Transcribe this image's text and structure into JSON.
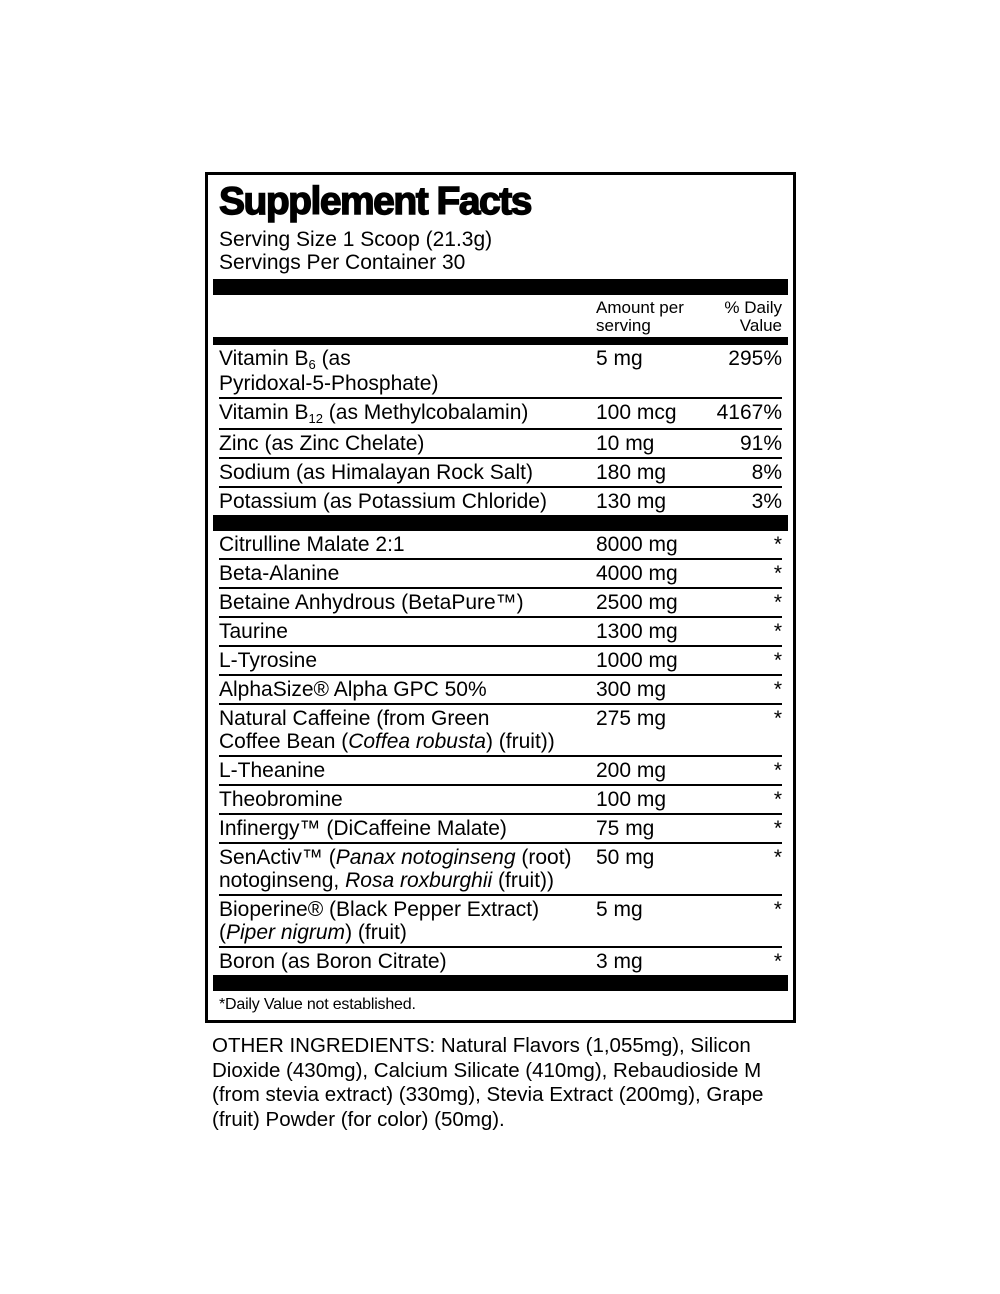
{
  "label": {
    "title": "Supplement Facts",
    "serving_size": "Serving Size 1 Scoop (21.3g)",
    "servings_per_container": "Servings Per Container 30",
    "columns": {
      "amount_line1": "Amount per",
      "amount_line2": "serving",
      "dv_line1": "% Daily",
      "dv_line2": "Value"
    },
    "vitamin_rows": [
      {
        "lines": [
          [
            {
              "t": "Vitamin B"
            },
            {
              "t": "6",
              "s": true
            },
            {
              "t": " (as"
            }
          ],
          [
            {
              "t": "Pyridoxal-5-Phosphate)"
            }
          ]
        ],
        "amount": "5 mg",
        "dv": "295%"
      },
      {
        "lines": [
          [
            {
              "t": "Vitamin B"
            },
            {
              "t": "12",
              "s": true
            },
            {
              "t": " (as Methylcobalamin)"
            }
          ]
        ],
        "amount": "100 mcg",
        "dv": "4167%"
      },
      {
        "lines": [
          [
            {
              "t": "Zinc (as Zinc Chelate)"
            }
          ]
        ],
        "amount": "10 mg",
        "dv": "91%"
      },
      {
        "lines": [
          [
            {
              "t": "Sodium (as Himalayan Rock Salt)"
            }
          ]
        ],
        "amount": "180 mg",
        "dv": "8%"
      },
      {
        "lines": [
          [
            {
              "t": "Potassium (as Potassium Chloride)"
            }
          ]
        ],
        "amount": "130 mg",
        "dv": "3%"
      }
    ],
    "active_rows": [
      {
        "lines": [
          [
            {
              "t": "Citrulline Malate 2:1"
            }
          ]
        ],
        "amount": "8000 mg",
        "dv": "*"
      },
      {
        "lines": [
          [
            {
              "t": "Beta-Alanine"
            }
          ]
        ],
        "amount": "4000 mg",
        "dv": "*"
      },
      {
        "lines": [
          [
            {
              "t": "Betaine Anhydrous (BetaPure™)"
            }
          ]
        ],
        "amount": "2500 mg",
        "dv": "*"
      },
      {
        "lines": [
          [
            {
              "t": "Taurine"
            }
          ]
        ],
        "amount": "1300 mg",
        "dv": "*"
      },
      {
        "lines": [
          [
            {
              "t": "L-Tyrosine"
            }
          ]
        ],
        "amount": "1000 mg",
        "dv": "*"
      },
      {
        "lines": [
          [
            {
              "t": "AlphaSize® Alpha GPC 50%"
            }
          ]
        ],
        "amount": "300 mg",
        "dv": "*"
      },
      {
        "lines": [
          [
            {
              "t": "Natural Caffeine (from Green"
            }
          ],
          [
            {
              "t": "Coffee Bean ("
            },
            {
              "t": "Coffea robusta",
              "i": true
            },
            {
              "t": ") (fruit))"
            }
          ]
        ],
        "amount": "275 mg",
        "dv": "*"
      },
      {
        "lines": [
          [
            {
              "t": "L-Theanine"
            }
          ]
        ],
        "amount": "200 mg",
        "dv": "*"
      },
      {
        "lines": [
          [
            {
              "t": "Theobromine"
            }
          ]
        ],
        "amount": "100 mg",
        "dv": "*"
      },
      {
        "lines": [
          [
            {
              "t": "Infinergy™ (DiCaffeine Malate)"
            }
          ]
        ],
        "amount": "75 mg",
        "dv": "*"
      },
      {
        "lines": [
          [
            {
              "t": "SenActiv™ ("
            },
            {
              "t": "Panax notoginseng",
              "i": true
            },
            {
              "t": " (root)"
            }
          ],
          [
            {
              "t": "notoginseng, "
            },
            {
              "t": "Rosa roxburghii",
              "i": true
            },
            {
              "t": " (fruit))"
            }
          ]
        ],
        "amount": "50 mg",
        "dv": "*"
      },
      {
        "lines": [
          [
            {
              "t": "Bioperine® (Black Pepper Extract)"
            }
          ],
          [
            {
              "t": "("
            },
            {
              "t": "Piper nigrum",
              "i": true
            },
            {
              "t": ") (fruit)"
            }
          ]
        ],
        "amount": "5 mg",
        "dv": "*"
      },
      {
        "lines": [
          [
            {
              "t": "Boron (as Boron Citrate)"
            }
          ]
        ],
        "amount": "3 mg",
        "dv": "*"
      }
    ],
    "footnote": "*Daily Value not established.",
    "colors": {
      "ink": "#000000",
      "paper": "#ffffff"
    }
  },
  "other_ingredients": "OTHER INGREDIENTS: Natural Flavors (1,055mg), Silicon Dioxide (430mg), Calcium Silicate (410mg), Rebaudioside M (from stevia extract) (330mg), Stevia Extract (200mg), Grape (fruit) Powder (for color) (50mg)."
}
